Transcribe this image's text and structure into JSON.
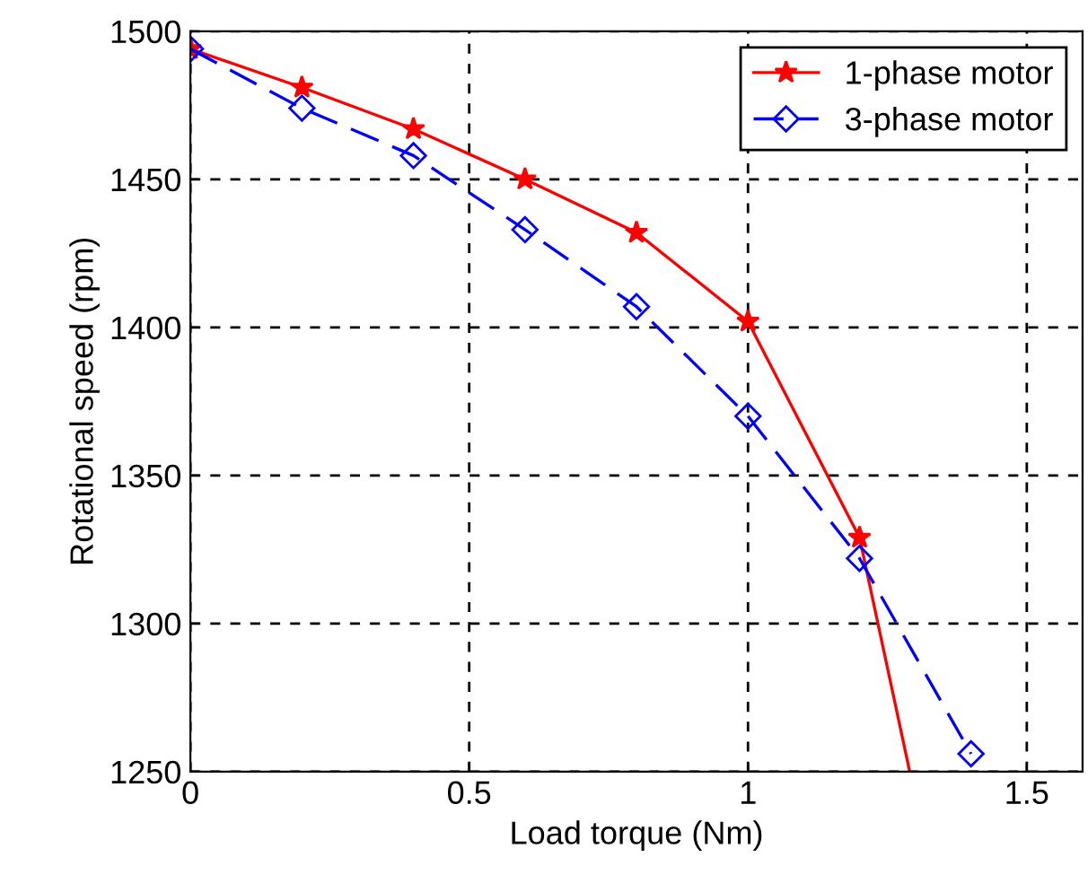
{
  "chart_data": {
    "type": "line",
    "xlabel": "Load torque (Nm)",
    "ylabel": "Rotational speed (rpm)",
    "xlim": [
      0,
      1.6
    ],
    "ylim": [
      1250,
      1500
    ],
    "xticks": [
      0,
      0.5,
      1,
      1.5
    ],
    "yticks": [
      1250,
      1300,
      1350,
      1400,
      1450,
      1500
    ],
    "grid": true,
    "legend": "top right",
    "series": [
      {
        "name": "1-phase motor",
        "color": "#ff0000",
        "marker": "star",
        "line_style": "solid",
        "x": [
          0,
          0.2,
          0.4,
          0.6,
          0.8,
          1.0,
          1.2
        ],
        "values": [
          1494,
          1481,
          1467,
          1450,
          1432,
          1402,
          1329
        ]
      },
      {
        "color": "#ff0000",
        "marker": "none",
        "line_style": "solid",
        "x": [
          1.2,
          1.29
        ],
        "values": [
          1329,
          1250
        ]
      },
      {
        "name": "3-phase motor",
        "color": "#0000ff",
        "marker": "diamond",
        "line_style": "dashed",
        "x": [
          0,
          0.2,
          0.4,
          0.6,
          0.8,
          1.0,
          1.2,
          1.4
        ],
        "values": [
          1494,
          1474,
          1458,
          1433,
          1407,
          1370,
          1322,
          1256
        ]
      }
    ]
  }
}
